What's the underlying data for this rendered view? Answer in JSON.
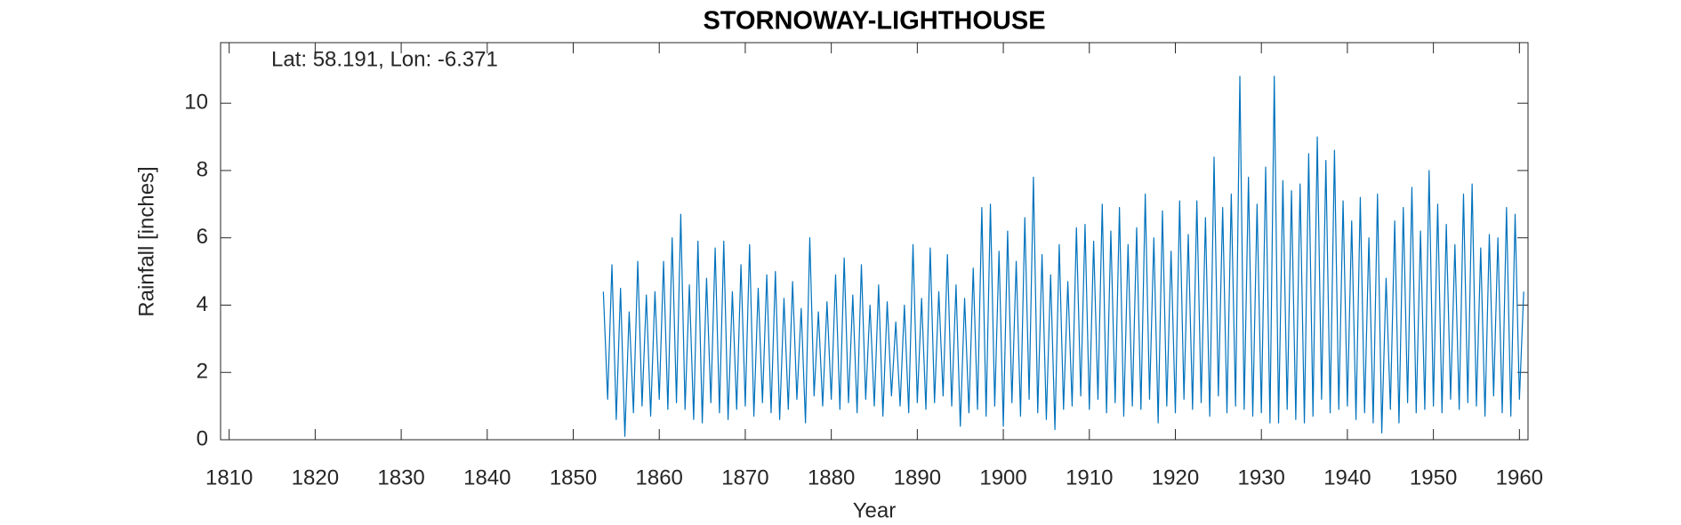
{
  "chart_data": {
    "type": "line",
    "title": "STORNOWAY-LIGHTHOUSE",
    "annotation": "Lat: 58.191, Lon: -6.371",
    "xlabel": "Year",
    "ylabel": "Rainfall [inches]",
    "xlim": [
      1809,
      1961
    ],
    "ylim": [
      0,
      11.8
    ],
    "xticks": [
      1810,
      1820,
      1830,
      1840,
      1850,
      1860,
      1870,
      1880,
      1890,
      1900,
      1910,
      1920,
      1930,
      1940,
      1950,
      1960
    ],
    "yticks": [
      0,
      2,
      4,
      6,
      8,
      10
    ],
    "grid": false,
    "x": [
      1853.5,
      1854,
      1854.5,
      1855,
      1855.5,
      1856,
      1856.5,
      1857,
      1857.5,
      1858,
      1858.5,
      1859,
      1859.5,
      1860,
      1860.5,
      1861,
      1861.5,
      1862,
      1862.5,
      1863,
      1863.5,
      1864,
      1864.5,
      1865,
      1865.5,
      1866,
      1866.5,
      1867,
      1867.5,
      1868,
      1868.5,
      1869,
      1869.5,
      1870,
      1870.5,
      1871,
      1871.5,
      1872,
      1872.5,
      1873,
      1873.5,
      1874,
      1874.5,
      1875,
      1875.5,
      1876,
      1876.5,
      1877,
      1877.5,
      1878,
      1878.5,
      1879,
      1879.5,
      1880,
      1880.5,
      1881,
      1881.5,
      1882,
      1882.5,
      1883,
      1883.5,
      1884,
      1884.5,
      1885,
      1885.5,
      1886,
      1886.5,
      1887,
      1887.5,
      1888,
      1888.5,
      1889,
      1889.5,
      1890,
      1890.5,
      1891,
      1891.5,
      1892,
      1892.5,
      1893,
      1893.5,
      1894,
      1894.5,
      1895,
      1895.5,
      1896,
      1896.5,
      1897,
      1897.5,
      1898,
      1898.5,
      1899,
      1899.5,
      1900,
      1900.5,
      1901,
      1901.5,
      1902,
      1902.5,
      1903,
      1903.5,
      1904,
      1904.5,
      1905,
      1905.5,
      1906,
      1906.5,
      1907,
      1907.5,
      1908,
      1908.5,
      1909,
      1909.5,
      1910,
      1910.5,
      1911,
      1911.5,
      1912,
      1912.5,
      1913,
      1913.5,
      1914,
      1914.5,
      1915,
      1915.5,
      1916,
      1916.5,
      1917,
      1917.5,
      1918,
      1918.5,
      1919,
      1919.5,
      1920,
      1920.5,
      1921,
      1921.5,
      1922,
      1922.5,
      1923,
      1923.5,
      1924,
      1924.5,
      1925,
      1925.5,
      1926,
      1926.5,
      1927,
      1927.5,
      1928,
      1928.5,
      1929,
      1929.5,
      1930,
      1930.5,
      1931,
      1931.5,
      1932,
      1932.5,
      1933,
      1933.5,
      1934,
      1934.5,
      1935,
      1935.5,
      1936,
      1936.5,
      1937,
      1937.5,
      1938,
      1938.5,
      1939,
      1939.5,
      1940,
      1940.5,
      1941,
      1941.5,
      1942,
      1942.5,
      1943,
      1943.5,
      1944,
      1944.5,
      1945,
      1945.5,
      1946,
      1946.5,
      1947,
      1947.5,
      1948,
      1948.5,
      1949,
      1949.5,
      1950,
      1950.5,
      1951,
      1951.5,
      1952,
      1952.5,
      1953,
      1953.5,
      1954,
      1954.5,
      1955,
      1955.5,
      1956,
      1956.5,
      1957,
      1957.5,
      1958,
      1958.5,
      1959,
      1959.5,
      1960,
      1960.5
    ],
    "series": [
      {
        "color": "#0072bd",
        "values": [
          4.4,
          1.2,
          5.2,
          0.6,
          4.5,
          0.1,
          3.8,
          0.8,
          5.3,
          1.0,
          4.3,
          0.7,
          4.4,
          1.2,
          5.3,
          0.9,
          6.0,
          1.1,
          6.7,
          0.9,
          4.6,
          0.6,
          5.9,
          0.5,
          4.8,
          1.1,
          5.7,
          0.8,
          5.9,
          0.6,
          4.4,
          0.9,
          5.2,
          1.0,
          5.8,
          0.7,
          4.5,
          1.1,
          4.9,
          0.8,
          5.0,
          0.6,
          4.2,
          0.9,
          4.7,
          1.2,
          3.9,
          0.5,
          6.0,
          1.3,
          3.8,
          1.0,
          4.1,
          1.2,
          4.9,
          0.9,
          5.4,
          1.1,
          4.3,
          0.8,
          5.2,
          1.2,
          4.0,
          1.0,
          4.6,
          0.7,
          4.1,
          1.3,
          3.5,
          1.0,
          4.0,
          0.8,
          5.8,
          1.1,
          4.2,
          0.9,
          5.7,
          1.1,
          4.4,
          1.3,
          5.5,
          1.0,
          4.6,
          0.4,
          4.2,
          0.8,
          5.1,
          0.9,
          6.9,
          0.7,
          7.0,
          1.0,
          5.6,
          0.4,
          6.2,
          1.1,
          5.3,
          0.7,
          6.6,
          1.2,
          7.8,
          0.8,
          5.5,
          0.6,
          4.9,
          0.3,
          5.8,
          0.9,
          4.7,
          1.0,
          6.3,
          1.3,
          6.4,
          0.9,
          5.9,
          1.2,
          7.0,
          0.8,
          6.2,
          1.1,
          6.9,
          0.7,
          5.8,
          1.0,
          6.3,
          0.9,
          7.3,
          1.2,
          6.0,
          0.5,
          6.8,
          1.0,
          5.6,
          0.8,
          7.1,
          1.2,
          6.1,
          0.9,
          7.1,
          1.1,
          6.6,
          0.7,
          8.4,
          1.3,
          6.9,
          0.8,
          7.3,
          1.0,
          10.8,
          0.9,
          7.8,
          0.7,
          7.0,
          0.8,
          8.1,
          0.5,
          10.8,
          0.5,
          7.7,
          0.9,
          7.4,
          0.6,
          7.6,
          0.5,
          8.5,
          0.7,
          9.0,
          1.2,
          8.3,
          0.8,
          8.6,
          0.9,
          7.1,
          1.0,
          6.5,
          0.6,
          7.2,
          0.8,
          6.0,
          0.5,
          7.3,
          0.2,
          4.8,
          0.9,
          6.5,
          0.5,
          6.9,
          1.1,
          7.5,
          0.8,
          6.2,
          0.9,
          8.0,
          1.0,
          7.0,
          0.8,
          6.4,
          1.2,
          5.8,
          0.9,
          7.3,
          1.1,
          7.6,
          1.0,
          5.7,
          0.7,
          6.1,
          1.3,
          6.0,
          0.8,
          6.9,
          0.7,
          6.7,
          1.2,
          4.4
        ]
      }
    ]
  }
}
